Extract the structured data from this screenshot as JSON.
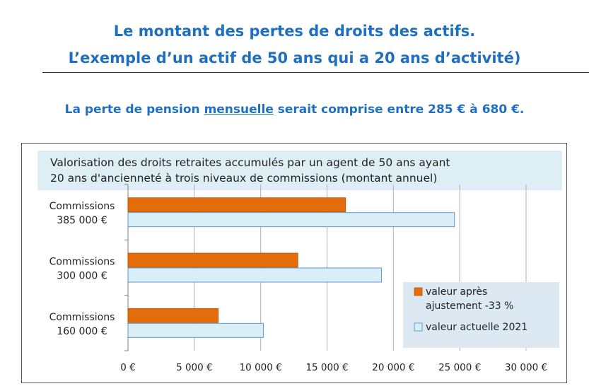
{
  "heading": {
    "line1": "Le montant des pertes de droits des actifs.",
    "line2": "L’exemple d’un actif de 50 ans qui a 20 ans d’activité)"
  },
  "subtitle": {
    "before": "La perte de pension ",
    "underlined": "mensuelle",
    "after": " serait comprise entre 285 € à 680 €."
  },
  "colors": {
    "heading": "#1f6fc1",
    "series_after": "#e46c0a",
    "series_current": "#d9eef7",
    "series_current_border": "#5b9bd5",
    "title_box": "#ddeef5",
    "legend_box": "#dce8f2"
  },
  "chart_data": {
    "type": "bar",
    "orientation": "horizontal",
    "title_lines": [
      "Valorisation des droits retraites accumulés par un agent de 50 ans ayant",
      "20 ans d'ancienneté à trois niveaux de commissions  (montant annuel)"
    ],
    "categories": [
      [
        "Commissions",
        "385 000 €"
      ],
      [
        "Commissions",
        "300 000 €"
      ],
      [
        "Commissions",
        "160 000 €"
      ]
    ],
    "series": [
      {
        "name": "valeur après ajustement -33 %",
        "name_lines": [
          "valeur après",
          "ajustement -33 %"
        ],
        "values": [
          16400,
          12800,
          6800
        ]
      },
      {
        "name": "valeur actuelle 2021",
        "name_lines": [
          "valeur actuelle 2021"
        ],
        "values": [
          24600,
          19100,
          10200
        ]
      }
    ],
    "xlim": [
      0,
      30000
    ],
    "xticks": [
      0,
      5000,
      10000,
      15000,
      20000,
      25000,
      30000
    ],
    "xtick_labels": [
      "0 €",
      "5 000 €",
      "10 000 €",
      "15 000 €",
      "20 000 €",
      "25 000 €",
      "30 000 €"
    ],
    "grid": "vertical",
    "legend_position": "bottom-right"
  }
}
